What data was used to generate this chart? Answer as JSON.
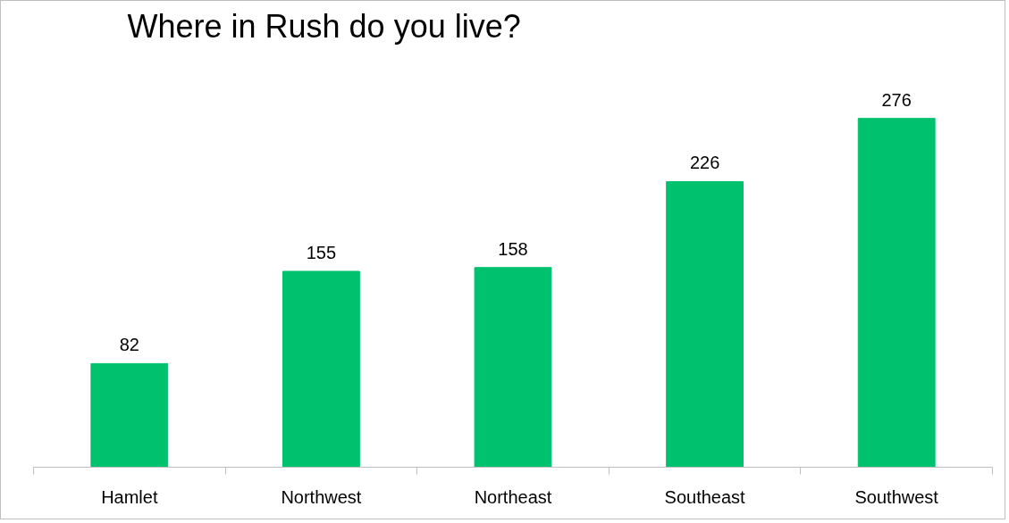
{
  "chart_data": {
    "type": "bar",
    "title": "Where in Rush do you live?",
    "categories": [
      "Hamlet",
      "Northwest",
      "Northeast",
      "Southeast",
      "Southwest"
    ],
    "values": [
      82,
      155,
      158,
      226,
      276
    ],
    "color": "#00c26e",
    "data_labels": true,
    "grid": false
  }
}
